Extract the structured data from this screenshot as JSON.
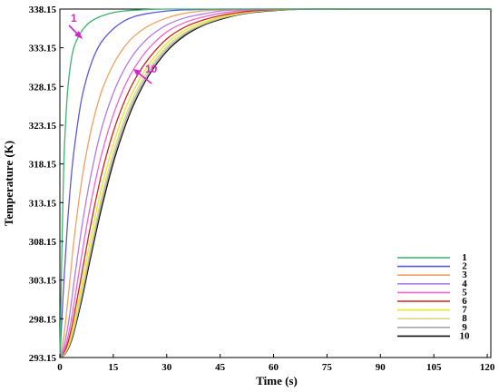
{
  "chart_data": {
    "type": "line",
    "title": "",
    "xlabel": "Time (s)",
    "ylabel": "Temperature (K)",
    "xlim": [
      0,
      121
    ],
    "ylim": [
      293.15,
      338.15
    ],
    "x_ticks": [
      0,
      15,
      30,
      45,
      60,
      75,
      90,
      105,
      120
    ],
    "x_tick_labels": [
      "0",
      "15",
      "30",
      "45",
      "60",
      "75",
      "90",
      "105",
      "120"
    ],
    "y_ticks": [
      293.15,
      298.15,
      303.15,
      308.15,
      313.15,
      318.15,
      323.15,
      328.15,
      333.15,
      338.15
    ],
    "y_tick_labels": [
      "293.15",
      "298.15",
      "303.15",
      "308.15",
      "313.15",
      "318.15",
      "323.15",
      "328.15",
      "333.15",
      "338.15"
    ],
    "grid": false,
    "legend_position": "bottom-right",
    "x": [
      0,
      1,
      2,
      3,
      4,
      6,
      8,
      10,
      12,
      15,
      18,
      21,
      25,
      30,
      35,
      40,
      45,
      50,
      55,
      60,
      70,
      80,
      90,
      100,
      110,
      121
    ],
    "series": [
      {
        "name": "1",
        "color": "#3cb371",
        "values": [
          293.15,
          316.5,
          326.5,
          331.0,
          333.3,
          335.2,
          336.3,
          336.9,
          337.3,
          337.7,
          337.9,
          338.0,
          338.1,
          338.15,
          338.15,
          338.15,
          338.15,
          338.15,
          338.15,
          338.15,
          338.15,
          338.15,
          338.15,
          338.15,
          338.15,
          338.15
        ]
      },
      {
        "name": "2",
        "color": "#5a5ad6",
        "values": [
          293.15,
          302.0,
          309.5,
          315.5,
          320.0,
          326.3,
          330.0,
          332.5,
          334.1,
          335.6,
          336.6,
          337.2,
          337.6,
          337.9,
          338.05,
          338.1,
          338.15,
          338.15,
          338.15,
          338.15,
          338.15,
          338.15,
          338.15,
          338.15,
          338.15,
          338.15
        ]
      },
      {
        "name": "3",
        "color": "#f0a060",
        "values": [
          293.15,
          295.5,
          299.5,
          304.0,
          308.5,
          315.6,
          320.9,
          324.9,
          327.9,
          331.0,
          333.2,
          334.7,
          336.0,
          337.0,
          337.6,
          337.9,
          338.05,
          338.1,
          338.15,
          338.15,
          338.15,
          338.15,
          338.15,
          338.15,
          338.15,
          338.15
        ]
      },
      {
        "name": "4",
        "color": "#b07ce8",
        "values": [
          293.15,
          294.3,
          296.5,
          299.5,
          303.0,
          309.5,
          315.0,
          319.5,
          323.2,
          327.3,
          330.3,
          332.5,
          334.5,
          336.1,
          337.0,
          337.5,
          337.9,
          338.05,
          338.1,
          338.15,
          338.15,
          338.15,
          338.15,
          338.15,
          338.15,
          338.15
        ]
      },
      {
        "name": "5",
        "color": "#ee66cc",
        "values": [
          293.15,
          293.9,
          295.3,
          297.5,
          300.2,
          306.0,
          311.4,
          316.0,
          319.9,
          324.5,
          328.0,
          330.6,
          333.1,
          335.2,
          336.4,
          337.1,
          337.6,
          337.9,
          338.05,
          338.1,
          338.15,
          338.15,
          338.15,
          338.15,
          338.15,
          338.15
        ]
      },
      {
        "name": "6",
        "color": "#d42020",
        "values": [
          293.15,
          293.7,
          294.7,
          296.4,
          298.6,
          303.6,
          308.7,
          313.3,
          317.4,
          322.3,
          326.1,
          329.0,
          331.8,
          334.3,
          335.8,
          336.7,
          337.3,
          337.7,
          337.95,
          338.05,
          338.15,
          338.15,
          338.15,
          338.15,
          338.15,
          338.15
        ]
      },
      {
        "name": "7",
        "color": "#e8e820",
        "values": [
          293.15,
          293.6,
          294.4,
          295.8,
          297.7,
          302.2,
          307.0,
          311.5,
          315.6,
          320.7,
          324.8,
          327.9,
          331.0,
          333.7,
          335.4,
          336.4,
          337.1,
          337.6,
          337.9,
          338.0,
          338.15,
          338.15,
          338.15,
          338.15,
          338.15,
          338.15
        ]
      },
      {
        "name": "8",
        "color": "#d6d68a",
        "values": [
          293.15,
          293.5,
          294.2,
          295.4,
          297.1,
          301.3,
          305.9,
          310.3,
          314.4,
          319.6,
          323.8,
          327.1,
          330.4,
          333.3,
          335.1,
          336.2,
          337.0,
          337.5,
          337.85,
          338.0,
          338.15,
          338.15,
          338.15,
          338.15,
          338.15,
          338.15
        ]
      },
      {
        "name": "9",
        "color": "#a8a8a8",
        "values": [
          293.15,
          293.45,
          294.1,
          295.2,
          296.8,
          300.8,
          305.3,
          309.6,
          313.7,
          318.9,
          323.2,
          326.6,
          330.0,
          333.0,
          334.9,
          336.1,
          336.9,
          337.45,
          337.8,
          338.0,
          338.15,
          338.15,
          338.15,
          338.15,
          338.15,
          338.15
        ]
      },
      {
        "name": "10",
        "color": "#111111",
        "values": [
          293.15,
          293.4,
          294.0,
          295.0,
          296.5,
          300.3,
          304.7,
          309.0,
          313.0,
          318.3,
          322.6,
          326.1,
          329.6,
          332.7,
          334.7,
          336.0,
          336.8,
          337.4,
          337.75,
          337.95,
          338.15,
          338.15,
          338.15,
          338.15,
          338.15,
          338.15
        ]
      }
    ],
    "annotations": [
      {
        "text": "1",
        "color": "#e020c8"
      },
      {
        "text": "10",
        "color": "#e020c8"
      }
    ]
  }
}
